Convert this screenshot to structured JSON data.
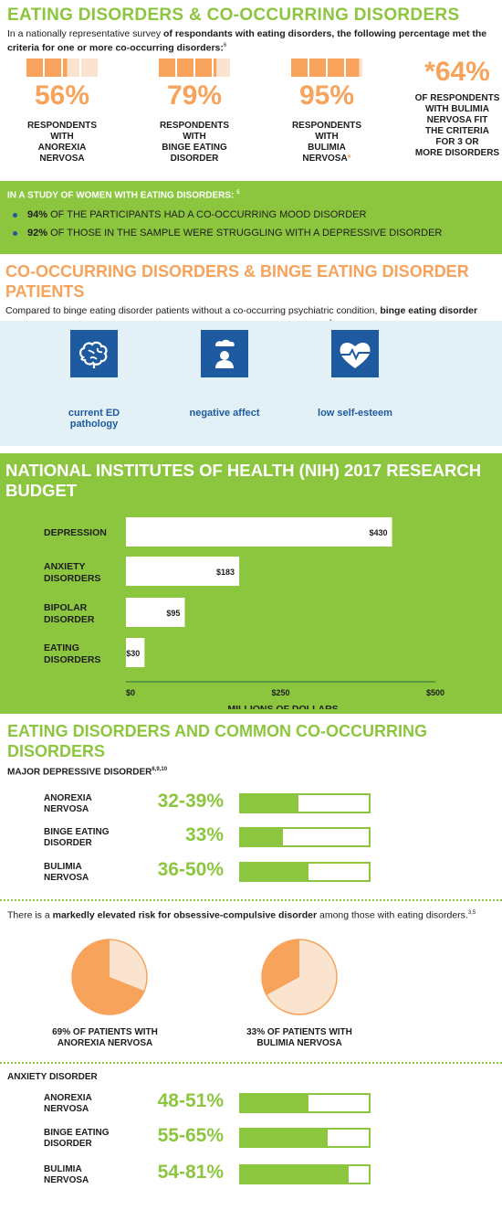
{
  "s1": {
    "title": "EATING DISORDERS & CO-OCCURRING DISORDERS",
    "intro_plain": "In a nationally representative survey ",
    "intro_bold": "of respondants with eating disorders, the following percentage met the criteria for one or more co-occurring disorders:",
    "intro_sup": "6",
    "stats": [
      {
        "pct": "56%",
        "fill": 0.56,
        "label": "RESPONDENTS\nWITH\nANOREXIA\nNERVOSA"
      },
      {
        "pct": "79%",
        "fill": 0.79,
        "label": "RESPONDENTS\nWITH\nBINGE EATING\nDISORDER"
      },
      {
        "pct": "95%",
        "fill": 0.95,
        "label": "RESPONDENTS\nWITH\nBULIMIA\nNERVOSA"
      }
    ],
    "stat_big": {
      "pct": "*64%",
      "label": "OF RESPONDENTS\nWITH BULIMIA\nNERVOSA FIT\nTHE CRITERIA\nFOR 3 OR\nMORE DISORDERS"
    },
    "asterisk": "*"
  },
  "s2": {
    "head": "IN A STUDY OF WOMEN WITH EATING DISORDERS:",
    "head_sup": "5",
    "items": [
      {
        "bold": "94%",
        "text": " OF THE PARTICIPANTS HAD A CO-OCCURRING MOOD DISORDER"
      },
      {
        "bold": "92%",
        "text": " OF THOSE IN THE SAMPLE WERE STRUGGLING WITH A DEPRESSIVE DISORDER"
      }
    ]
  },
  "s3": {
    "title": "CO-OCCURRING DISORDERS & BINGE EATING DISORDER PATIENTS",
    "intro_plain": "Compared to binge eating disorder patients without a co-occurring psychiatric condition, ",
    "intro_bold": "binge eating disorder patients with a co-occurring disorder had significantly higher levels of:",
    "intro_sup": "4",
    "icons": [
      {
        "icon": "brain-icon",
        "label": "current ED\npathology"
      },
      {
        "icon": "person-cloud-icon",
        "label": "negative affect"
      },
      {
        "icon": "heart-pulse-icon",
        "label": "low self-esteem"
      }
    ]
  },
  "s4": {
    "title": "NATIONAL INSTITUTES OF HEALTH (NIH) 2017 RESEARCH BUDGET"
  },
  "chart_data": {
    "type": "bar",
    "orientation": "horizontal",
    "title": "NATIONAL INSTITUTES OF HEALTH (NIH) 2017 RESEARCH BUDGET",
    "categories": [
      "DEPRESSION",
      "ANXIETY\nDISORDERS",
      "BIPOLAR\nDISORDER",
      "EATING\nDISORDERS"
    ],
    "values": [
      430,
      183,
      95,
      30
    ],
    "value_labels": [
      "$430",
      "$183",
      "$95",
      "$30"
    ],
    "xlabel": "MILLIONS OF DOLLARS",
    "xlim": [
      0,
      500
    ],
    "xticks": [
      0,
      250,
      500
    ],
    "xtick_labels": [
      "$0",
      "$250",
      "$500"
    ],
    "bar_color": "#ffffff",
    "grid": false
  },
  "s5": {
    "title": "EATING DISORDERS AND COMMON CO-OCCURRING DISORDERS",
    "mdd_head": "MAJOR DEPRESSIVE DISORDER",
    "mdd_sup": "6,9,10",
    "mdd": [
      {
        "name": "ANOREXIA\nNERVOSA",
        "pct": "32-39%",
        "fill": 0.45
      },
      {
        "name": "BINGE EATING\nDISORDER",
        "pct": "33%",
        "fill": 0.33
      },
      {
        "name": "BULIMIA\nNERVOSA",
        "pct": "36-50%",
        "fill": 0.53
      }
    ],
    "ocd_plain_1": "There is a ",
    "ocd_bold": "markedly elevated risk for obsessive-compulsive disorder",
    "ocd_plain_2": " among those with eating disorders.",
    "ocd_sup": "3,5",
    "pies": [
      {
        "label": "69% OF PATIENTS WITH\nANOREXIA NERVOSA",
        "value": 69
      },
      {
        "label": "33% OF PATIENTS WITH\nBULIMIA NERVOSA",
        "value": 33
      }
    ],
    "anx_head": "ANXIETY DISORDER",
    "anx": [
      {
        "name": "ANOREXIA\nNERVOSA",
        "pct": "48-51%",
        "fill": 0.53
      },
      {
        "name": "BINGE EATING\nDISORDER",
        "pct": "55-65%",
        "fill": 0.68
      },
      {
        "name": "BULIMIA\nNERVOSA",
        "pct": "54-81%",
        "fill": 0.84
      }
    ]
  },
  "colors": {
    "green": "#8cc63f",
    "orange": "#f7a35c",
    "light_orange": "#fbe4cf",
    "blue": "#1e5aa0",
    "light_blue": "#e3f1f7"
  }
}
